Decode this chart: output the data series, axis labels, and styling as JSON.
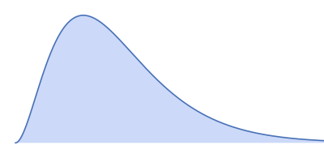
{
  "background_color": "#ffffff",
  "fill_color": "#ccd9f8",
  "line_color": "#4a72b8",
  "line_width": 1.2,
  "figsize": [
    4.0,
    2.0
  ],
  "dpi": 100,
  "xlim": [
    -0.05,
    1.0
  ],
  "ylim": [
    -0.15,
    1.12
  ]
}
